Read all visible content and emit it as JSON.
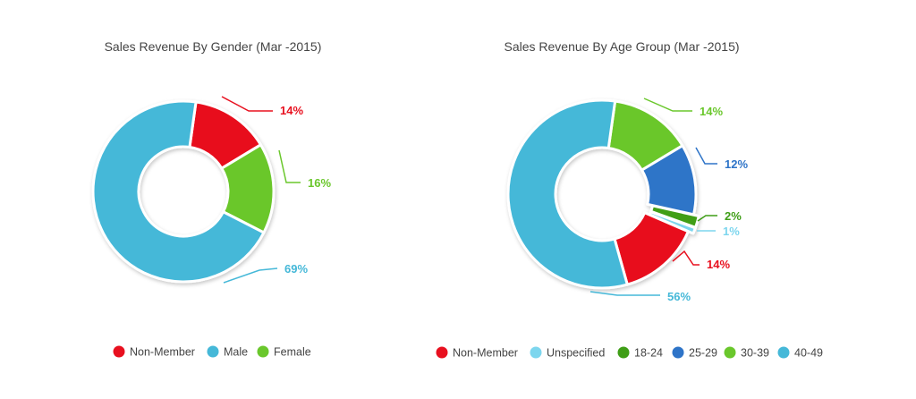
{
  "chart_data": [
    {
      "type": "pie",
      "title": "Sales Revenue By Gender (Mar -2015)",
      "categories": [
        "Non-Member",
        "Male",
        "Female"
      ],
      "values": [
        14,
        69,
        16
      ],
      "value_labels": [
        "14%",
        "69%",
        "16%"
      ],
      "colors": [
        "#e8101f",
        "#45b8d8",
        "#6ac72c"
      ],
      "hole": true,
      "legend_position": "bottom"
    },
    {
      "type": "pie",
      "title": "Sales Revenue By Age Group (Mar -2015)",
      "categories": [
        "Non-Member",
        "Unspecified",
        "18-24",
        "25-29",
        "30-39",
        "40-49"
      ],
      "values": [
        14,
        1,
        2,
        12,
        14,
        56
      ],
      "value_labels": [
        "14%",
        "1%",
        "2%",
        "12%",
        "14%",
        "56%"
      ],
      "colors": [
        "#e8101f",
        "#7dd6ee",
        "#3f9e17",
        "#2e74c8",
        "#6ac72c",
        "#45b8d8"
      ],
      "hole": true,
      "legend_position": "bottom"
    }
  ]
}
